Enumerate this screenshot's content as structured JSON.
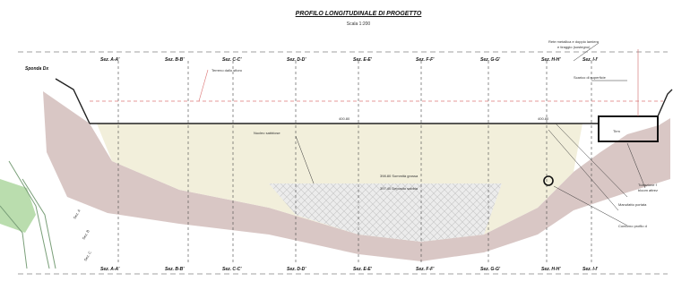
{
  "drawing": {
    "title": "PROFILO LONGITUDINALE DI PROGETTO",
    "scale": "Scala 1:200"
  },
  "sections_top": [
    "Sez. A-A'",
    "Sez. B-B'",
    "Sez. C-C'",
    "Sez. D-D'",
    "Sez. E-E'",
    "Sez. F-F'",
    "Sez. G-G'",
    "Sez. H-H'",
    "Sez. I-I'"
  ],
  "sections_bottom": [
    "Sez. A-A'",
    "Sez. B-B'",
    "Sez. C-C'",
    "Sez. D-D'",
    "Sez. E-E'",
    "Sez. F-F'",
    "Sez. G-G'",
    "Sez. H-H'",
    "Sez. I-I'"
  ],
  "labels": {
    "sponda": "Sponda Dx",
    "line_label": "Terreno dallo sfioro",
    "water_level": "400.80",
    "level_mid": "400.80",
    "right_note_1": "Rete metallica e doppio lamiera",
    "right_note_2": "e tiraggio (sostegno)",
    "right_note_3": "Scarico di superficie",
    "inner_left": "Nucleo sabbiose",
    "inner_mid_1": "398.80 Sommità grossa",
    "inner_mid_2": "397.40 Deposito sabbia",
    "right_lower_1": "Tubazione f",
    "right_lower_2": "bloom attrez",
    "right_lower_3": "Manufatto portata",
    "right_lower_4": "Contorno profilo d",
    "box_label": "Tirm",
    "left_label_1": "Sez. A",
    "left_label_2": "Sez. B",
    "left_label_3": "Sez. C"
  }
}
